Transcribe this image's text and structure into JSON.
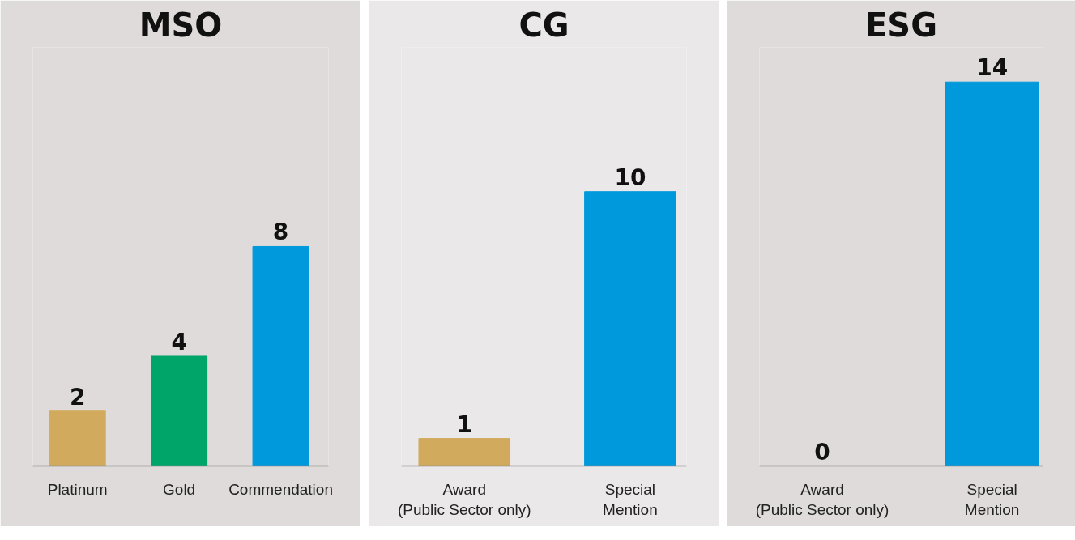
{
  "chart_data": [
    {
      "type": "bar",
      "title": "MSO",
      "categories": [
        "Platinum",
        "Gold",
        "Commendation"
      ],
      "values": [
        2,
        4,
        8
      ],
      "colors": [
        "#d1aa5e",
        "#00a56a",
        "#0099dc"
      ],
      "data_labels": true
    },
    {
      "type": "bar",
      "title": "CG",
      "categories": [
        "Award\n(Public Sector only)",
        "Special\nMention"
      ],
      "values": [
        1,
        10
      ],
      "colors": [
        "#d1aa5e",
        "#0099dc"
      ],
      "data_labels": true
    },
    {
      "type": "bar",
      "title": "ESG",
      "categories": [
        "Award\n(Public Sector only)",
        "Special\nMention"
      ],
      "values": [
        0,
        14
      ],
      "colors": [
        "#d1aa5e",
        "#0099dc"
      ],
      "data_labels": true
    }
  ]
}
